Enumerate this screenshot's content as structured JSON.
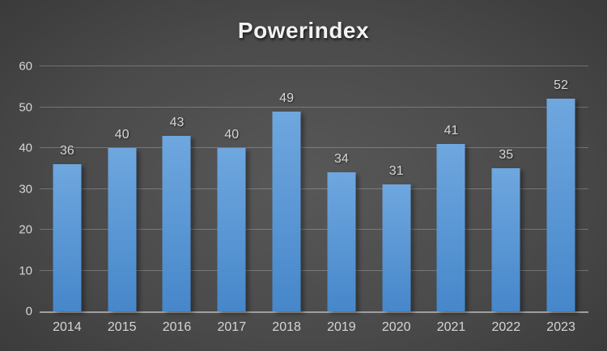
{
  "chart_data": {
    "type": "bar",
    "title": "Powerindex",
    "categories": [
      "2014",
      "2015",
      "2016",
      "2017",
      "2018",
      "2019",
      "2020",
      "2021",
      "2022",
      "2023"
    ],
    "values": [
      36,
      40,
      43,
      40,
      49,
      34,
      31,
      41,
      35,
      52
    ],
    "xlabel": "",
    "ylabel": "",
    "ylim": [
      0,
      60
    ],
    "yticks": [
      0,
      10,
      20,
      30,
      40,
      50,
      60
    ],
    "grid": true,
    "legend": false,
    "data_labels": true
  },
  "colors": {
    "bar_top": "#6FA7DF",
    "bar_bottom": "#4687CA",
    "background_center": "#585858",
    "background_edge": "#242424",
    "gridline": "rgba(255,255,255,0.24)",
    "axis_line": "#9F9F9F",
    "title_color": "#F2F2F2",
    "tick_label_color": "#D6D6D6",
    "data_label_color": "#D6D6D6"
  }
}
